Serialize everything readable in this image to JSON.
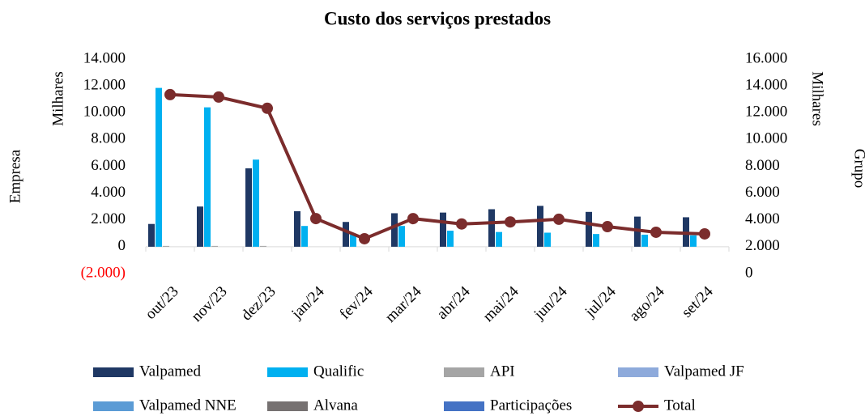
{
  "chart_data": {
    "type": "bar",
    "title": "Custo dos serviços prestados",
    "y_label": "Milhares",
    "y_title": "Empresa",
    "y2_label": "Milhares",
    "y2_title": "Grupo",
    "categories": [
      "out/23",
      "nov/23",
      "dez/23",
      "jan/24",
      "fev/24",
      "mar/24",
      "abr/24",
      "mai/24",
      "jun/24",
      "jul/24",
      "ago/24",
      "set/24"
    ],
    "series": [
      {
        "name": "Valpamed",
        "color": "#1f3864",
        "values": [
          1700,
          3000,
          5850,
          2650,
          1850,
          2500,
          2550,
          2800,
          3050,
          2600,
          2250,
          2200
        ]
      },
      {
        "name": "Qualific",
        "color": "#00b0f0",
        "values": [
          11850,
          10400,
          6500,
          1550,
          900,
          1550,
          1200,
          1100,
          1050,
          950,
          900,
          850
        ]
      },
      {
        "name": "API",
        "color": "#a5a5a5",
        "values": [
          60,
          60,
          60,
          0,
          0,
          0,
          0,
          0,
          0,
          0,
          0,
          0
        ]
      },
      {
        "name": "Valpamed JF",
        "color": "#8eaadb",
        "values": [
          0,
          0,
          0,
          0,
          0,
          0,
          0,
          0,
          0,
          0,
          0,
          0
        ]
      },
      {
        "name": "Valpamed NNE",
        "color": "#5b9bd5",
        "values": [
          0,
          0,
          0,
          0,
          0,
          0,
          0,
          0,
          0,
          0,
          0,
          0
        ]
      },
      {
        "name": "Alvana",
        "color": "#767171",
        "values": [
          0,
          0,
          0,
          0,
          0,
          0,
          0,
          0,
          0,
          0,
          0,
          0
        ]
      },
      {
        "name": "Participações",
        "color": "#4472c4",
        "values": [
          0,
          0,
          0,
          0,
          0,
          0,
          0,
          0,
          0,
          0,
          0,
          0
        ]
      },
      {
        "name": "Total",
        "color": "#7b2c2c",
        "type": "line",
        "axis": "y2",
        "values": [
          13350,
          13170,
          12330,
          4100,
          2600,
          4100,
          3700,
          3850,
          4050,
          3500,
          3080,
          2960
        ]
      }
    ],
    "ylim": [
      -2000,
      14000
    ],
    "yticks": [
      {
        "value": -2000,
        "label": "(2.000)"
      },
      0,
      {
        "value": 2000,
        "label": "2.000"
      },
      {
        "value": 4000,
        "label": "4.000"
      },
      {
        "value": 6000,
        "label": "6.000"
      },
      {
        "value": 8000,
        "label": "8.000"
      },
      {
        "value": 10000,
        "label": "10.000"
      },
      {
        "value": 12000,
        "label": "12.000"
      },
      {
        "value": 14000,
        "label": "14.000"
      }
    ],
    "negative_tick_color": "#ff0000",
    "y2lim": [
      0,
      16000
    ],
    "y2ticks": [
      0,
      {
        "value": 2000,
        "label": "2.000"
      },
      {
        "value": 4000,
        "label": "4.000"
      },
      {
        "value": 6000,
        "label": "6.000"
      },
      {
        "value": 8000,
        "label": "8.000"
      },
      {
        "value": 10000,
        "label": "10.000"
      },
      {
        "value": 12000,
        "label": "12.000"
      },
      {
        "value": 14000,
        "label": "14.000"
      },
      {
        "value": 16000,
        "label": "16.000"
      }
    ],
    "legend": "bottom"
  }
}
